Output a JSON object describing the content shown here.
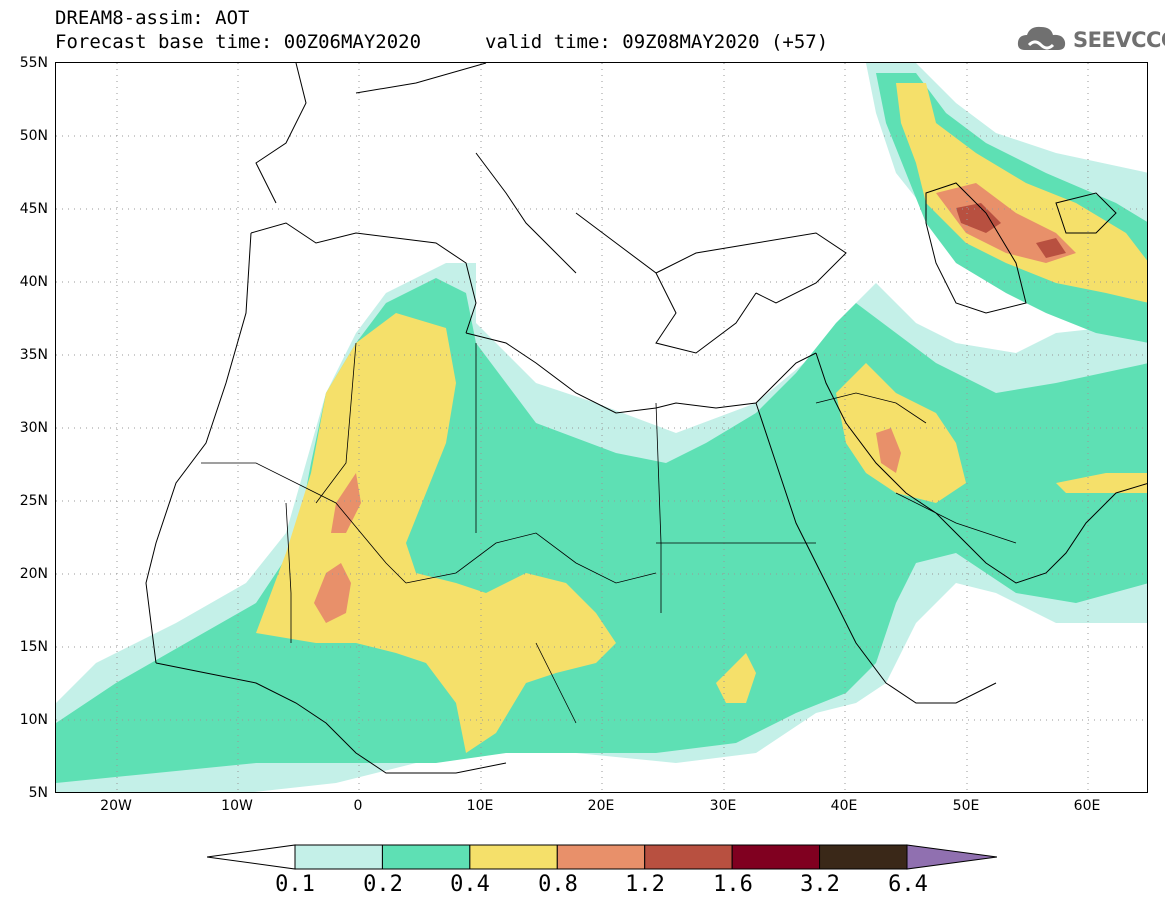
{
  "header": {
    "title": "DREAM8-assim: AOT",
    "forecast": "Forecast base time: 00Z06MAY2020",
    "valid": "valid time: 09Z08MAY2020 (+57)"
  },
  "logo": {
    "text": "SEEVCCC",
    "icon": "cloud-icon"
  },
  "map": {
    "lat_labels": [
      "55N",
      "50N",
      "45N",
      "40N",
      "35N",
      "30N",
      "25N",
      "20N",
      "15N",
      "10N",
      "5N"
    ],
    "lon_labels": [
      "20W",
      "10W",
      "0",
      "10E",
      "20E",
      "30E",
      "40E",
      "50E",
      "60E"
    ],
    "extent": {
      "lon_min": -25,
      "lon_max": 65,
      "lat_min": 5,
      "lat_max": 55
    }
  },
  "legend": {
    "levels": [
      "0.1",
      "0.2",
      "0.4",
      "0.8",
      "1.2",
      "1.6",
      "3.2",
      "6.4"
    ],
    "colors": [
      "#c4f0e8",
      "#5ee0b4",
      "#f5e06a",
      "#e8906a",
      "#b85040",
      "#800020",
      "#3a2818",
      "#9070b0"
    ]
  }
}
